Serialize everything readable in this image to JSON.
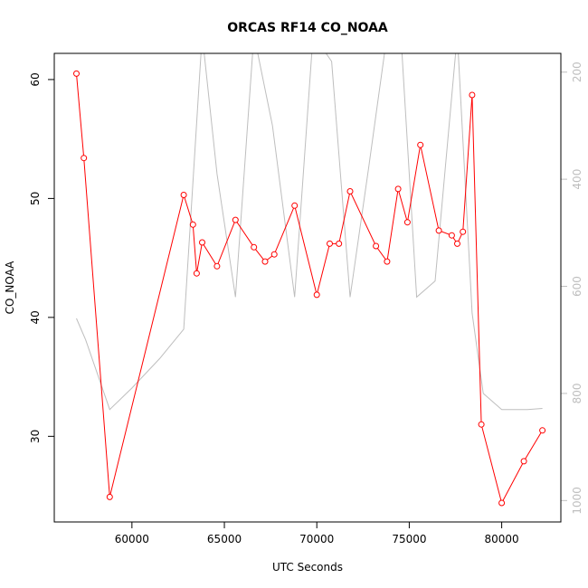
{
  "chart_data": {
    "type": "line",
    "title": "ORCAS RF14 CO_NOAA",
    "xlabel": "UTC Seconds",
    "ylabel": "CO_NOAA",
    "xlim": [
      55800,
      83200
    ],
    "ylim": [
      22.8,
      62.2
    ],
    "y2lim": [
      1040,
      165
    ],
    "x_ticks": [
      60000,
      65000,
      70000,
      75000,
      80000
    ],
    "y_ticks": [
      30,
      40,
      50,
      60
    ],
    "y2_ticks": [
      200,
      400,
      600,
      800,
      1000
    ],
    "grid": false,
    "colors": {
      "primary": "#ff0000",
      "secondary": "#bebebe",
      "axis": "#000000"
    },
    "series": [
      {
        "axis": "left",
        "marker": "circle",
        "x": [
          57000,
          57400,
          58800,
          62800,
          63300,
          63500,
          63800,
          64600,
          65600,
          66600,
          67200,
          67700,
          68800,
          70000,
          70700,
          71200,
          71800,
          73200,
          73800,
          74400,
          74900,
          75600,
          76600,
          77300,
          77600,
          77900,
          78400,
          78900,
          80000,
          81200,
          82200
        ],
        "values": [
          60.5,
          53.4,
          24.9,
          50.3,
          47.8,
          43.7,
          46.3,
          44.3,
          48.2,
          45.9,
          44.7,
          45.3,
          49.4,
          41.9,
          46.2,
          46.2,
          50.6,
          46.0,
          44.7,
          50.8,
          48.0,
          54.5,
          47.3,
          46.9,
          46.2,
          47.2,
          58.7,
          31.0,
          24.4,
          27.9,
          30.5
        ]
      },
      {
        "axis": "right",
        "x": [
          57000,
          57500,
          58800,
          60000,
          61500,
          62800,
          63800,
          64600,
          65600,
          66600,
          67600,
          68800,
          69800,
          70800,
          71800,
          72800,
          73800,
          74600,
          75400,
          76400,
          77600,
          78400,
          79000,
          80000,
          81400,
          82200
        ],
        "values": [
          660,
          700,
          830,
          790,
          735,
          680,
          130,
          390,
          620,
          130,
          300,
          620,
          130,
          180,
          620,
          380,
          130,
          160,
          620,
          590,
          130,
          650,
          800,
          830,
          830,
          828
        ]
      }
    ]
  }
}
